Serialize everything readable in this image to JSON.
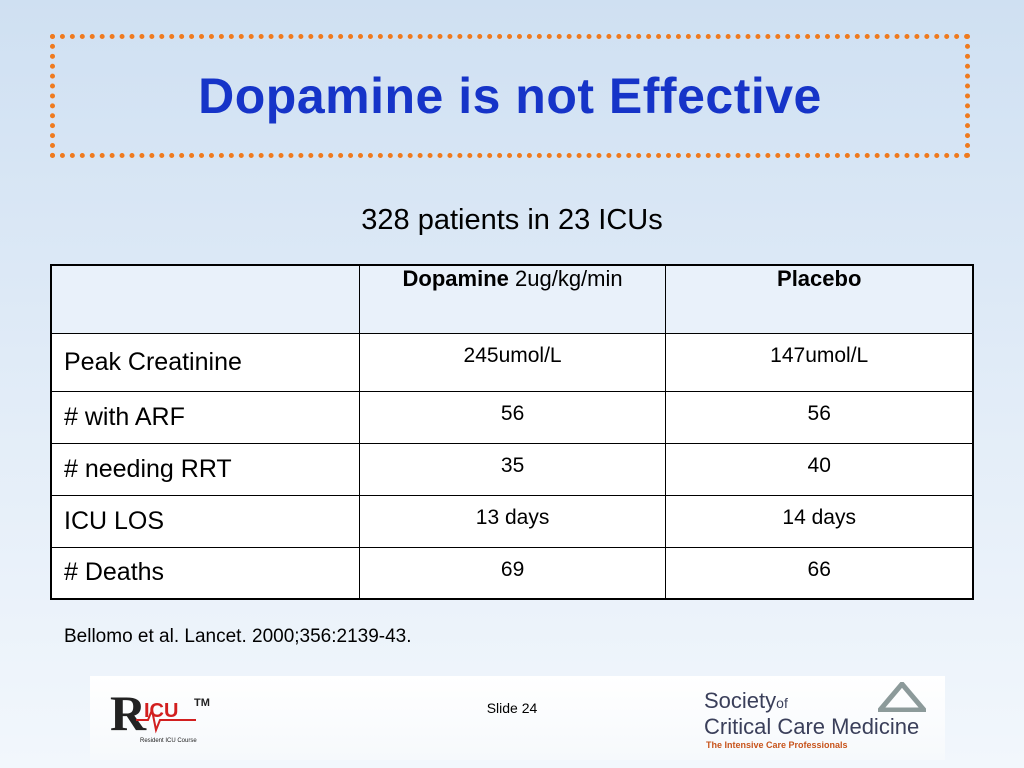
{
  "slide": {
    "title": "Dopamine is not Effective",
    "subtitle": "328 patients in 23 ICUs",
    "citation": "Bellomo et al. Lancet. 2000;356:2139-43.",
    "slide_number": "Slide 24"
  },
  "table": {
    "header": {
      "dopamine_bold": "Dopamine",
      "dopamine_dose": " 2ug/kg/min",
      "placebo": "Placebo"
    },
    "rows": [
      {
        "label": "Peak Creatinine",
        "dopamine": "245umol/L",
        "placebo": "147umol/L"
      },
      {
        "label": "# with ARF",
        "dopamine": "56",
        "placebo": "56"
      },
      {
        "label": "# needing RRT",
        "dopamine": "35",
        "placebo": "40"
      },
      {
        "label": "ICU LOS",
        "dopamine": "13 days",
        "placebo": "14 days"
      },
      {
        "label": "# Deaths",
        "dopamine": "69",
        "placebo": "66"
      }
    ]
  },
  "logos": {
    "ricu_text": "ICU",
    "ricu_tm": "TM",
    "ricu_caption": "Resident ICU Course",
    "scc_line1": "Society",
    "scc_of": "of",
    "scc_line2": "Critical Care Medicine",
    "scc_tagline": "The Intensive Care Professionals"
  },
  "colors": {
    "title": "#1634c8",
    "title_border": "#ef7a1e",
    "ricu_red": "#d21f1f"
  }
}
